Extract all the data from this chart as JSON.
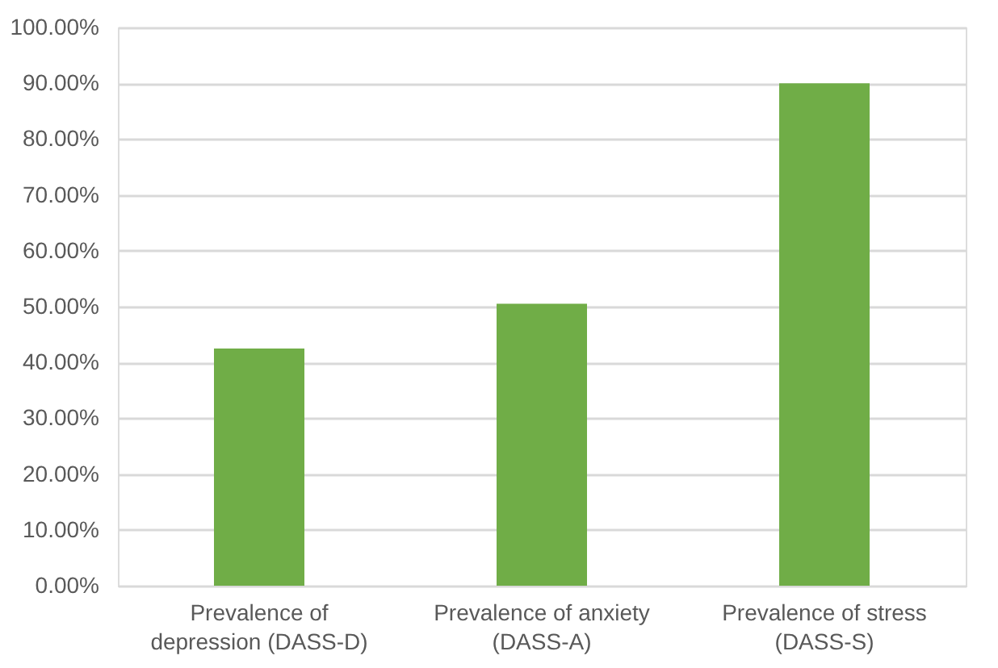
{
  "chart_data": {
    "type": "bar",
    "categories": [
      "Prevalence of depression (DASS-D)",
      "Prevalence of anxiety (DASS-A)",
      "Prevalence of stress (DASS-S)"
    ],
    "values": [
      42.5,
      50.5,
      90.0
    ],
    "color": "#70ad47",
    "ylim": [
      0,
      100
    ],
    "yticks": [
      {
        "value": 0,
        "label": "0.00%"
      },
      {
        "value": 10,
        "label": "10.00%"
      },
      {
        "value": 20,
        "label": "20.00%"
      },
      {
        "value": 30,
        "label": "30.00%"
      },
      {
        "value": 40,
        "label": "40.00%"
      },
      {
        "value": 50,
        "label": "50.00%"
      },
      {
        "value": 60,
        "label": "60.00%"
      },
      {
        "value": 70,
        "label": "70.00%"
      },
      {
        "value": 80,
        "label": "80.00%"
      },
      {
        "value": 90,
        "label": "90.00%"
      },
      {
        "value": 100,
        "label": "100.00%"
      }
    ],
    "grid": "y"
  }
}
